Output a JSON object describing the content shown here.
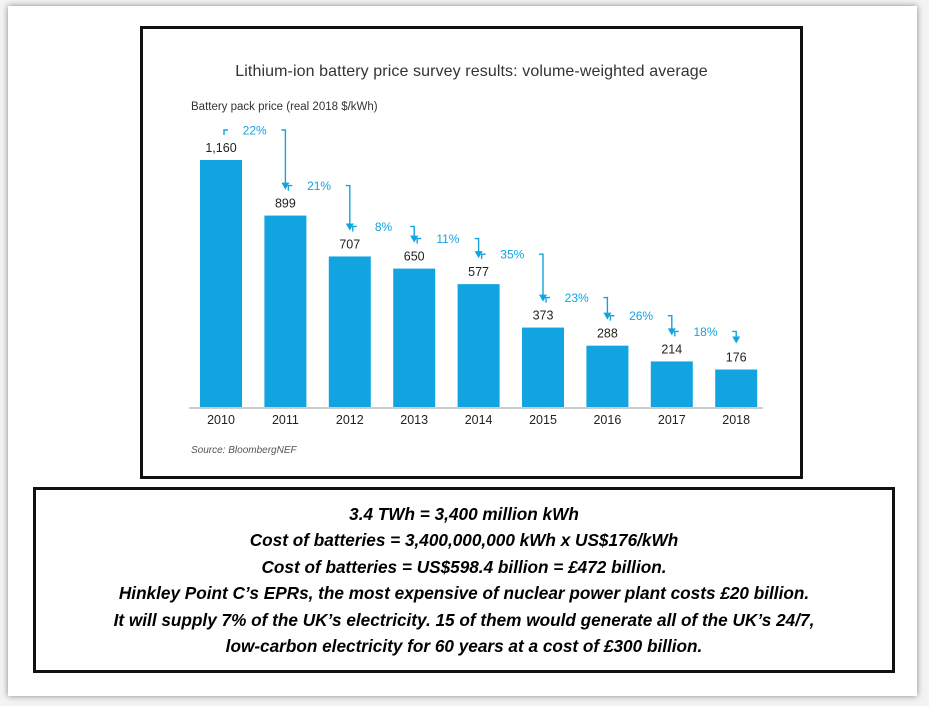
{
  "chart_data": {
    "type": "bar",
    "title": "Lithium-ion battery price survey results: volume-weighted average",
    "ylabel": "Battery pack price (real 2018 $/kWh)",
    "xlabel": "",
    "categories": [
      "2010",
      "2011",
      "2012",
      "2013",
      "2014",
      "2015",
      "2016",
      "2017",
      "2018"
    ],
    "values": [
      1160,
      899,
      707,
      650,
      577,
      373,
      288,
      214,
      176
    ],
    "value_labels": [
      "1,160",
      "899",
      "707",
      "650",
      "577",
      "373",
      "288",
      "214",
      "176"
    ],
    "changes": [
      "22%",
      "21%",
      "8%",
      "11%",
      "35%",
      "23%",
      "26%",
      "18%"
    ],
    "ylim": [
      0,
      1160
    ],
    "grid": false,
    "bar_color": "#11a4e0",
    "annotation_color": "#11a4e0",
    "source": "Source: BloombergNEF"
  },
  "text_box": {
    "lines": [
      "3.4 TWh = 3,400 million kWh",
      "Cost of batteries = 3,400,000,000 kWh x US$176/kWh",
      "Cost of batteries = US$598.4 billion = £472 billion.",
      "Hinkley Point C’s EPRs, the most expensive of nuclear power plant costs £20 billion.",
      "It will supply 7% of the UK’s electricity. 15 of them would generate all of the UK’s 24/7,",
      "low-carbon electricity for 60 years at a cost of £300 billion."
    ]
  }
}
